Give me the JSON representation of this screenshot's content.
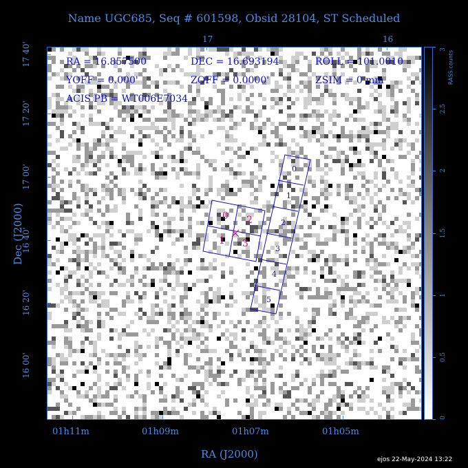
{
  "title": "Name UGC685, Seq # 601598, Obsid 28104, ST Scheduled",
  "top_axis": {
    "ticks": [
      "17",
      "16"
    ]
  },
  "x_axis": {
    "label": "RA (J2000)",
    "ticks": [
      "01h11m",
      "01h09m",
      "01h07m",
      "01h05m"
    ]
  },
  "y_axis": {
    "label": "Dec (J2000)",
    "ticks": [
      "17 40'",
      "17 20'",
      "17 00'",
      "16 40'",
      "16 20'",
      "16 00'"
    ]
  },
  "overlay": {
    "ra": "RA =  16.857500",
    "dec": "DEC = 16.693194",
    "roll": "ROLL = 101.0010",
    "yoff": "YOFF =   0.000'",
    "zoff": "ZOFF =  0.0000'",
    "zsim": "ZSIM = 0 mm",
    "acis": "ACIS PB = WT006E7034"
  },
  "chips": {
    "imaging": [
      "0",
      "1",
      "2",
      "3"
    ],
    "spectroscopy": [
      "0",
      "1",
      "2",
      "3",
      "4",
      "5"
    ]
  },
  "colorbar": {
    "label": "RASS counts",
    "ticks": [
      "3",
      "2.5",
      "2",
      "1.5",
      "1",
      "0.5",
      "0"
    ]
  },
  "footer": "ejos 22-May-2024 13:22",
  "colors": {
    "background": "#000000",
    "axis": "#4a8ee8",
    "overlay_text": "#1010d0",
    "imaging_label": "#c8147c"
  }
}
